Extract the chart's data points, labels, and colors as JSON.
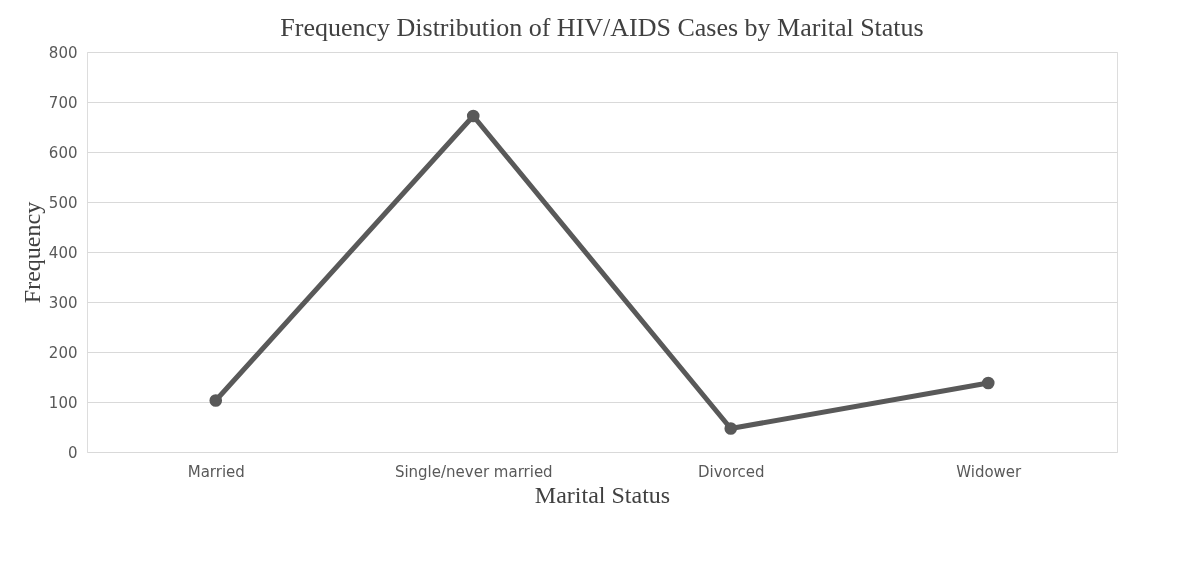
{
  "chart_data": {
    "type": "line",
    "title": "Frequency Distribution of HIV/AIDS Cases by Marital Status",
    "xlabel": "Marital Status",
    "ylabel": "Frequency",
    "categories": [
      "Married",
      "Single/never married",
      "Divorced",
      "Widower"
    ],
    "series": [
      {
        "color": "#595959",
        "values": [
          103,
          672,
          47,
          138
        ]
      }
    ],
    "ylim": [
      0,
      800
    ],
    "yticks": [
      0,
      100,
      200,
      300,
      400,
      500,
      600,
      700,
      800
    ],
    "grid": "y",
    "marker": "circle",
    "line_style": "solid",
    "legend": false
  }
}
